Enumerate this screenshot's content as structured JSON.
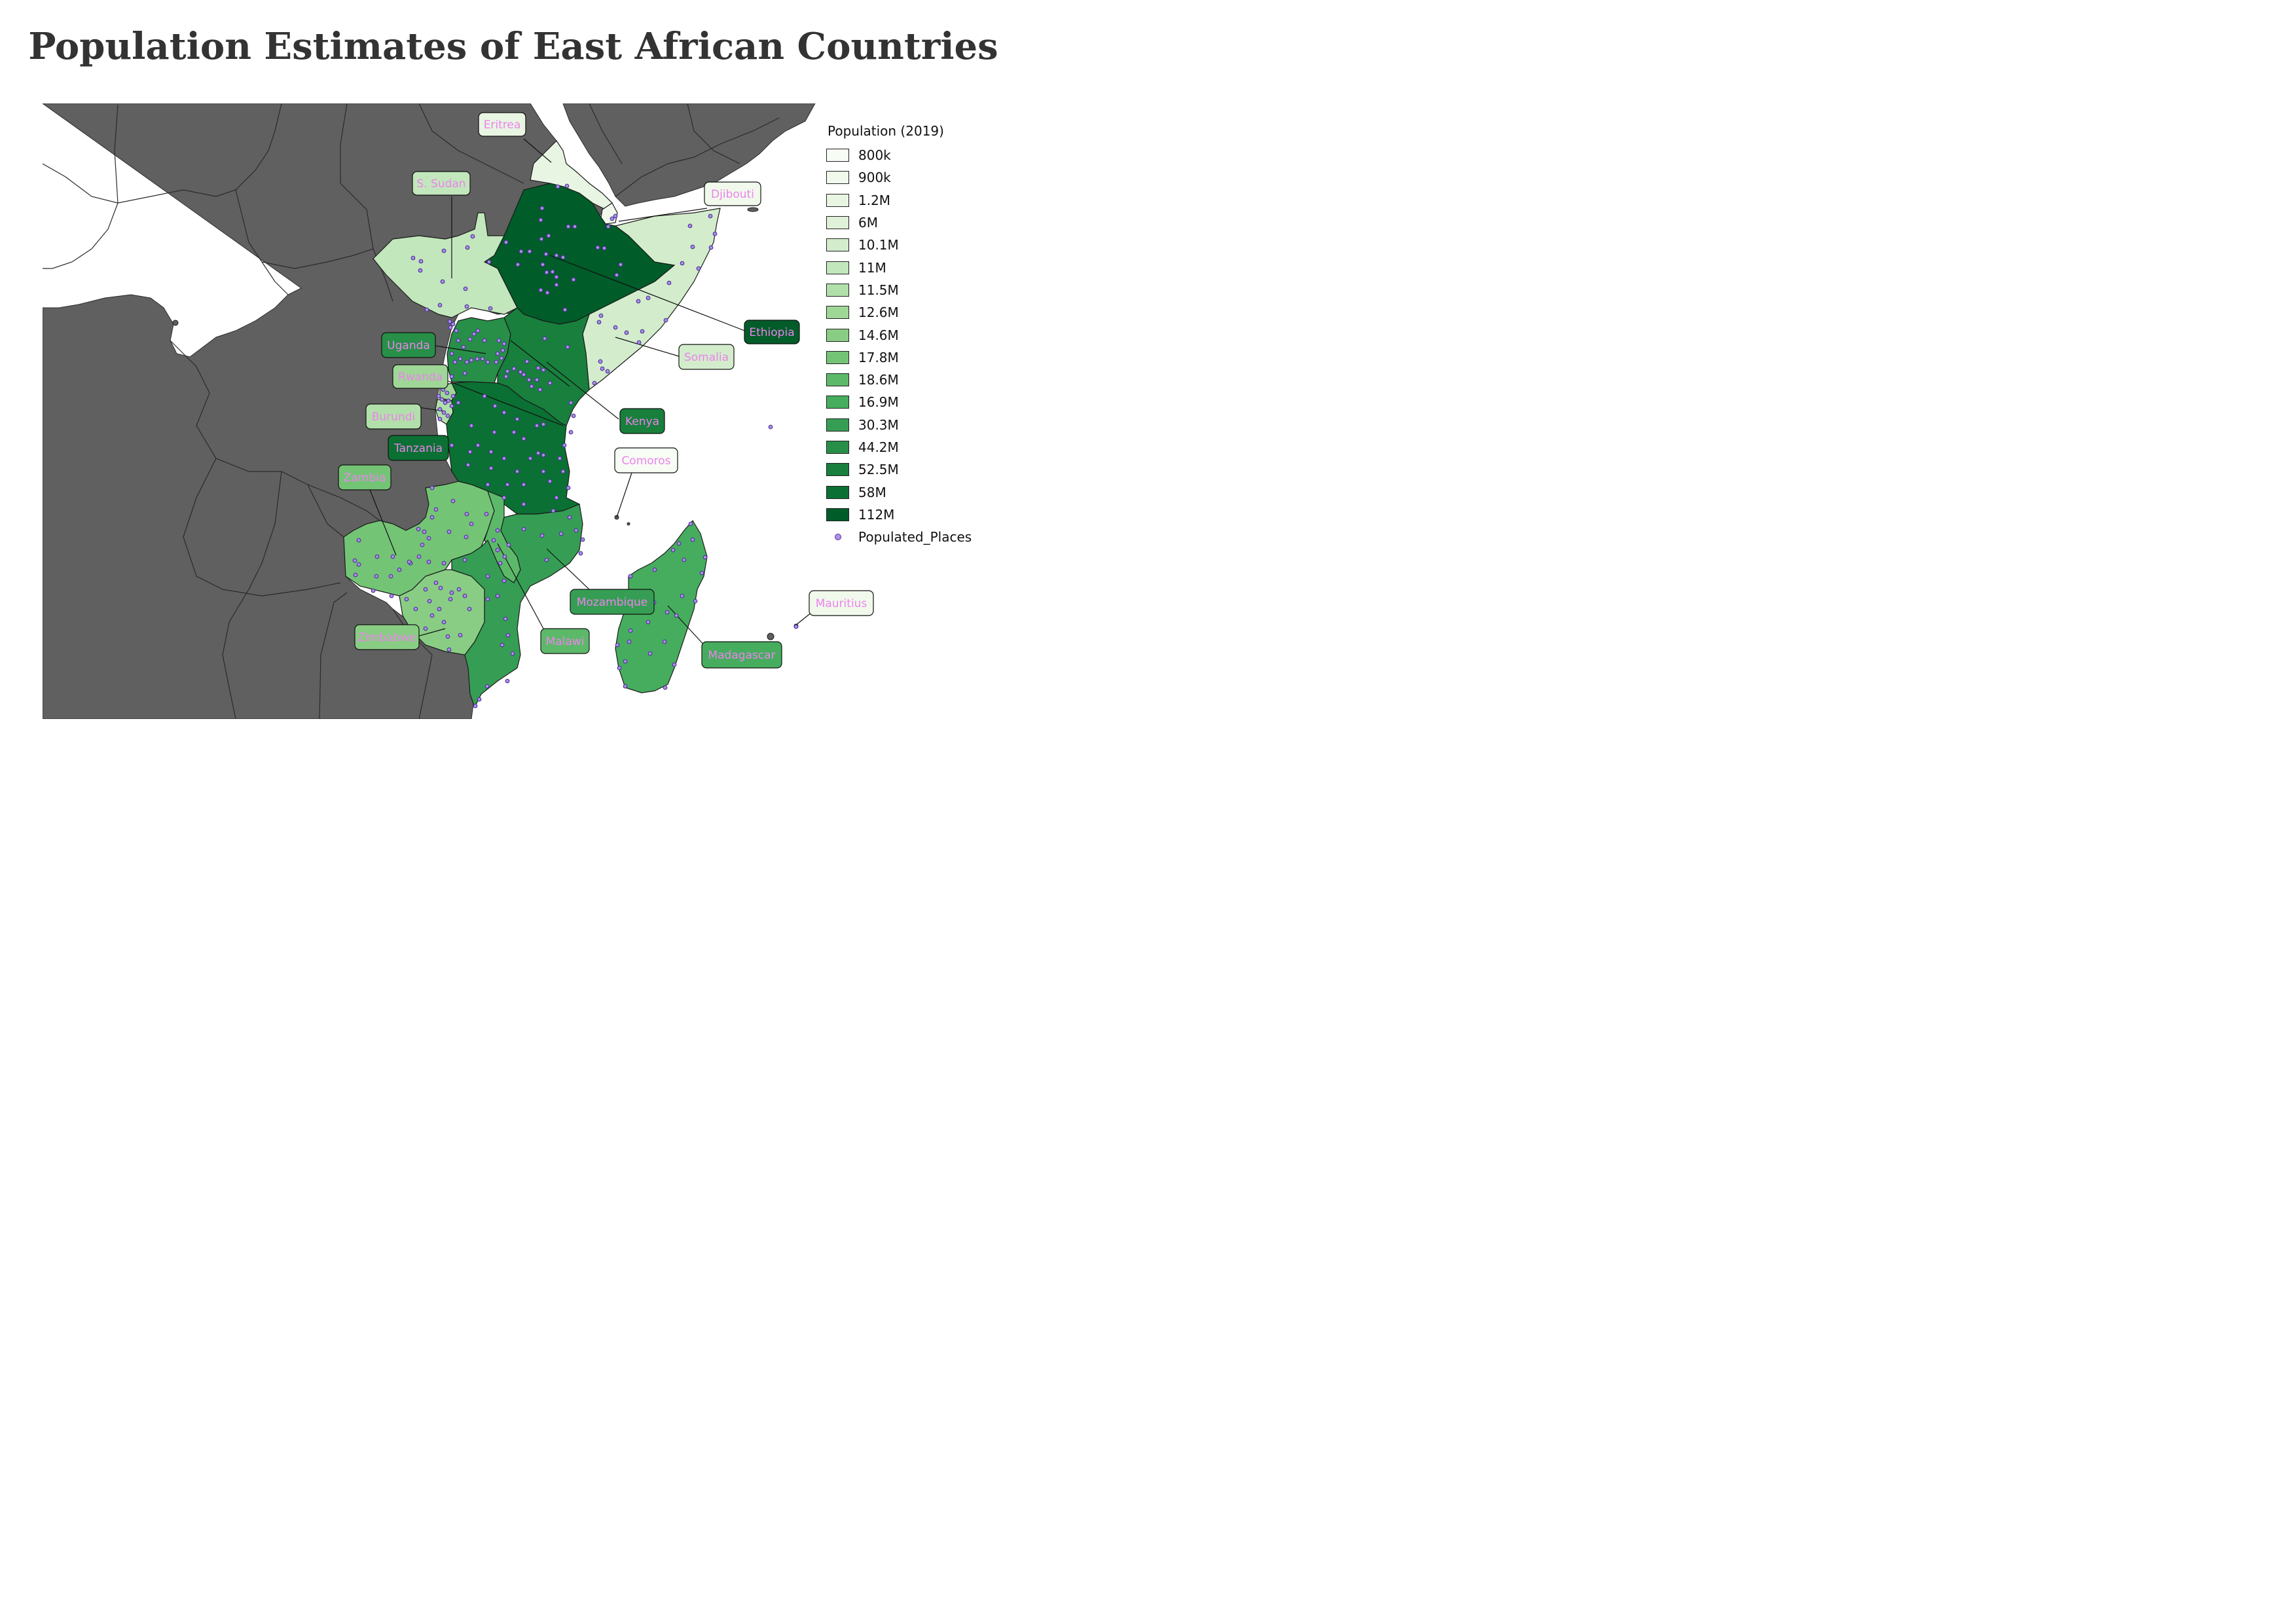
{
  "title": "Population Estimates of East African Countries",
  "colors": {
    "background_land": "#606060",
    "sea": "#ffffff",
    "point_fill": "#b48be8",
    "point_stroke": "#4a3a9a",
    "label_text": "#ee82ee"
  },
  "legend": {
    "title": "Population (2019)",
    "classes": [
      {
        "label": "800k",
        "color": "#f7fcf5"
      },
      {
        "label": "900k",
        "color": "#f0f9ec"
      },
      {
        "label": "1.2M",
        "color": "#e8f5e2"
      },
      {
        "label": "6M",
        "color": "#dff1d8"
      },
      {
        "label": "10.1M",
        "color": "#d3edcc"
      },
      {
        "label": "11M",
        "color": "#c3e7bc"
      },
      {
        "label": "11.5M",
        "color": "#b2e0aa"
      },
      {
        "label": "12.6M",
        "color": "#9fd797"
      },
      {
        "label": "14.6M",
        "color": "#89cd84"
      },
      {
        "label": "17.8M",
        "color": "#74c476"
      },
      {
        "label": "18.6M",
        "color": "#5db96a"
      },
      {
        "label": "16.9M",
        "color": "#46ad5e"
      },
      {
        "label": "30.3M",
        "color": "#369e54"
      },
      {
        "label": "44.2M",
        "color": "#278f48"
      },
      {
        "label": "52.5M",
        "color": "#187f3d"
      },
      {
        "label": "58M",
        "color": "#0b7033"
      },
      {
        "label": "112M",
        "color": "#005c29"
      }
    ],
    "points_label": "Populated_Places"
  },
  "countries": [
    {
      "name": "Eritrea",
      "class": "1.2M"
    },
    {
      "name": "S. Sudan",
      "class": "11M"
    },
    {
      "name": "Djibouti",
      "class": "900k"
    },
    {
      "name": "Ethiopia",
      "class": "112M"
    },
    {
      "name": "Somalia",
      "class": "10.1M"
    },
    {
      "name": "Uganda",
      "class": "44.2M"
    },
    {
      "name": "Rwanda",
      "class": "12.6M"
    },
    {
      "name": "Burundi",
      "class": "11.5M"
    },
    {
      "name": "Kenya",
      "class": "52.5M"
    },
    {
      "name": "Tanzania",
      "class": "58M"
    },
    {
      "name": "Comoros",
      "class": "800k"
    },
    {
      "name": "Zambia",
      "class": "17.8M"
    },
    {
      "name": "Zimbabwe",
      "class": "14.6M"
    },
    {
      "name": "Malawi",
      "class": "18.6M"
    },
    {
      "name": "Mozambique",
      "class": "30.3M"
    },
    {
      "name": "Madagascar",
      "class": "16.9M"
    },
    {
      "name": "Mauritius",
      "class": "900k"
    }
  ]
}
